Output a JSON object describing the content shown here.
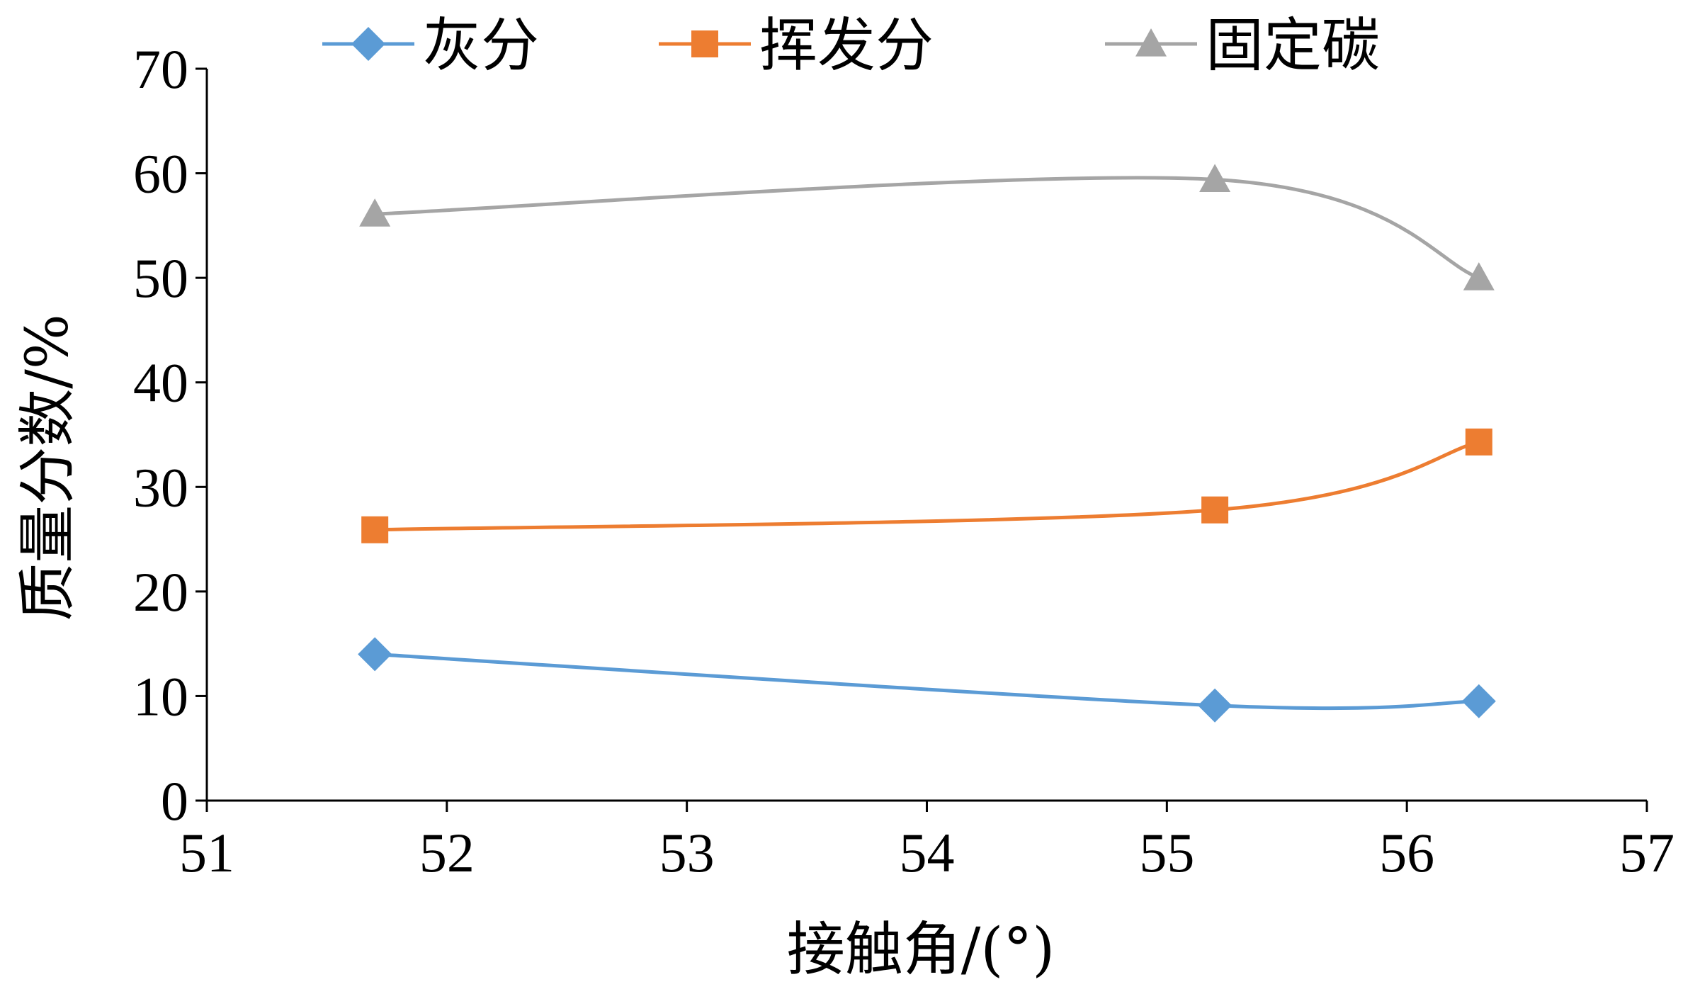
{
  "chart_data": {
    "type": "line",
    "title": "",
    "xlabel": "接触角/(°)",
    "ylabel": "质量分数/%",
    "xlim": [
      51,
      57
    ],
    "ylim": [
      0,
      70
    ],
    "x_ticks": [
      51,
      52,
      53,
      54,
      55,
      56,
      57
    ],
    "y_ticks": [
      0,
      10,
      20,
      30,
      40,
      50,
      60,
      70
    ],
    "grid": false,
    "legend_position": "top",
    "smooth": true,
    "series": [
      {
        "name": "灰分",
        "marker": "diamond",
        "color": "#5b9bd5",
        "points": [
          {
            "x": 51.7,
            "y": 14.0
          },
          {
            "x": 55.2,
            "y": 9.1
          },
          {
            "x": 56.3,
            "y": 9.5
          }
        ]
      },
      {
        "name": "挥发分",
        "marker": "square",
        "color": "#ed7d31",
        "points": [
          {
            "x": 51.7,
            "y": 25.9
          },
          {
            "x": 55.2,
            "y": 27.8
          },
          {
            "x": 56.3,
            "y": 34.3
          }
        ]
      },
      {
        "name": "固定碳",
        "marker": "triangle",
        "color": "#a5a5a5",
        "points": [
          {
            "x": 51.7,
            "y": 56.1
          },
          {
            "x": 55.2,
            "y": 59.4
          },
          {
            "x": 56.3,
            "y": 50.0
          }
        ]
      }
    ]
  }
}
